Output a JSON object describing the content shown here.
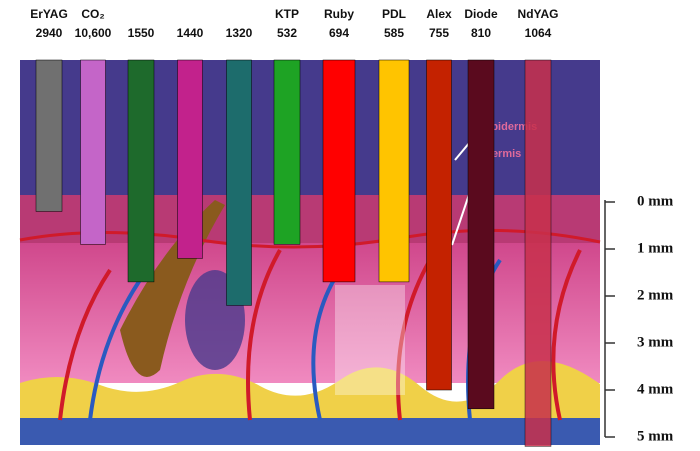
{
  "chart_data": {
    "type": "bar",
    "categories": [
      "ErYAG",
      "CO₂",
      null,
      null,
      null,
      "KTP",
      "Ruby",
      "PDL",
      "Alex",
      "Diode",
      "NdYAG"
    ],
    "wavelengths": [
      "2940",
      "10,600",
      "1550",
      "1440",
      "1320",
      "532",
      "694",
      "585",
      "755",
      "810",
      "1064"
    ],
    "values": [
      0.2,
      0.9,
      1.7,
      1.2,
      2.2,
      0.9,
      1.7,
      1.7,
      4.0,
      4.4,
      5.2
    ],
    "colors": [
      "#707070",
      "#c465c8",
      "#1e6a2c",
      "#c2228c",
      "#1d6c6c",
      "#1ea324",
      "#ff0000",
      "#ffc400",
      "#c42200",
      "#5a0a1e",
      "#c8304c"
    ],
    "ylim": [
      0,
      5
    ],
    "yticks": [
      {
        "value": 0,
        "label": "0 mm"
      },
      {
        "value": 1,
        "label": "1 mm"
      },
      {
        "value": 2,
        "label": "2 mm"
      },
      {
        "value": 3,
        "label": "3 mm"
      },
      {
        "value": 4,
        "label": "4 mm"
      },
      {
        "value": 5,
        "label": "5 mm"
      }
    ],
    "annotations": [
      "Epidermis",
      "Dermis"
    ]
  }
}
